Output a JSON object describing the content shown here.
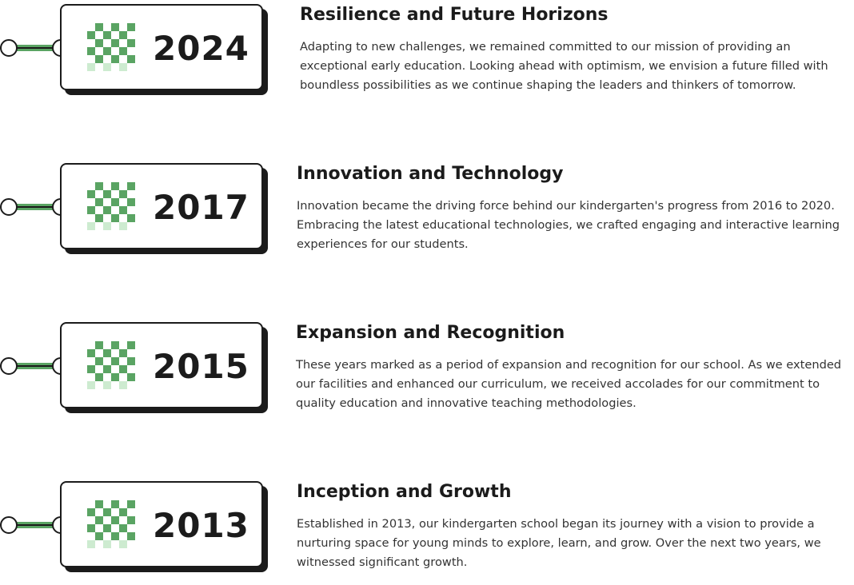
{
  "timeline": {
    "entries": [
      {
        "year": "2024",
        "title": "Resilience and Future Horizons",
        "description": "Adapting to new challenges, we remained committed to our mission of providing an exceptional early education. Looking ahead with optimism, we envision a future filled with boundless possibilities as we continue shaping the leaders and thinkers of tomorrow."
      },
      {
        "year": "2017",
        "title": "Innovation and Technology",
        "description": "Innovation became the driving force behind our kindergarten's progress from 2016 to 2020. Embracing the latest educational technologies, we crafted engaging and interactive learning experiences for our students."
      },
      {
        "year": "2015",
        "title": "Expansion and Recognition",
        "description": "These years marked as a period of expansion and recognition for our school. As we extended our facilities and enhanced our curriculum, we received accolades for our commitment to quality education and innovative teaching methodologies."
      },
      {
        "year": "2013",
        "title": "Inception and Growth",
        "description": "Established in 2013, our kindergarten school began its journey with a vision to provide a nurturing space for young minds to explore, learn, and grow. Over the next two years, we witnessed significant growth."
      }
    ]
  },
  "colors": {
    "accent_green": "#5aa463",
    "light_green": "#cdebd0",
    "ink": "#1b1b1b"
  },
  "icons": {
    "connector": "timeline-connector-icon",
    "grid": "checker-grid-icon"
  }
}
